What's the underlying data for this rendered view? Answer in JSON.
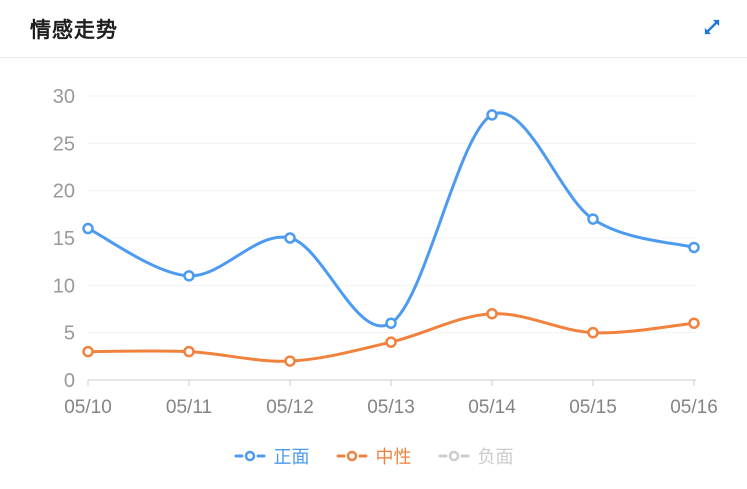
{
  "header": {
    "title": "情感走势"
  },
  "chart_data": {
    "type": "line",
    "title": "情感走势",
    "x": [
      "05/10",
      "05/11",
      "05/12",
      "05/13",
      "05/14",
      "05/15",
      "05/16"
    ],
    "series": [
      {
        "name": "正面",
        "values": [
          16,
          11,
          15,
          6,
          28,
          17,
          14
        ],
        "color": "#4d9bf1",
        "active": true
      },
      {
        "name": "中性",
        "values": [
          3,
          3,
          2,
          4,
          7,
          5,
          6
        ],
        "color": "#f0823e",
        "active": true
      },
      {
        "name": "负面",
        "values": [],
        "color": "#cccccc",
        "active": false
      }
    ],
    "ylim": [
      0,
      30
    ],
    "ytick_step": 5,
    "smooth": true,
    "grid": true,
    "legend_position": "bottom",
    "xlabel": "",
    "ylabel": ""
  },
  "colors": {
    "axis_line": "#cccccc",
    "grid_line": "#f3f3f3",
    "y_label": "#999999",
    "x_label": "#848484",
    "title_text": "#1f1f1f",
    "divider": "#e9e9e9",
    "expand_icon": "#2178d4",
    "legend_disabled": "#cccccc",
    "background": "#ffffff"
  }
}
